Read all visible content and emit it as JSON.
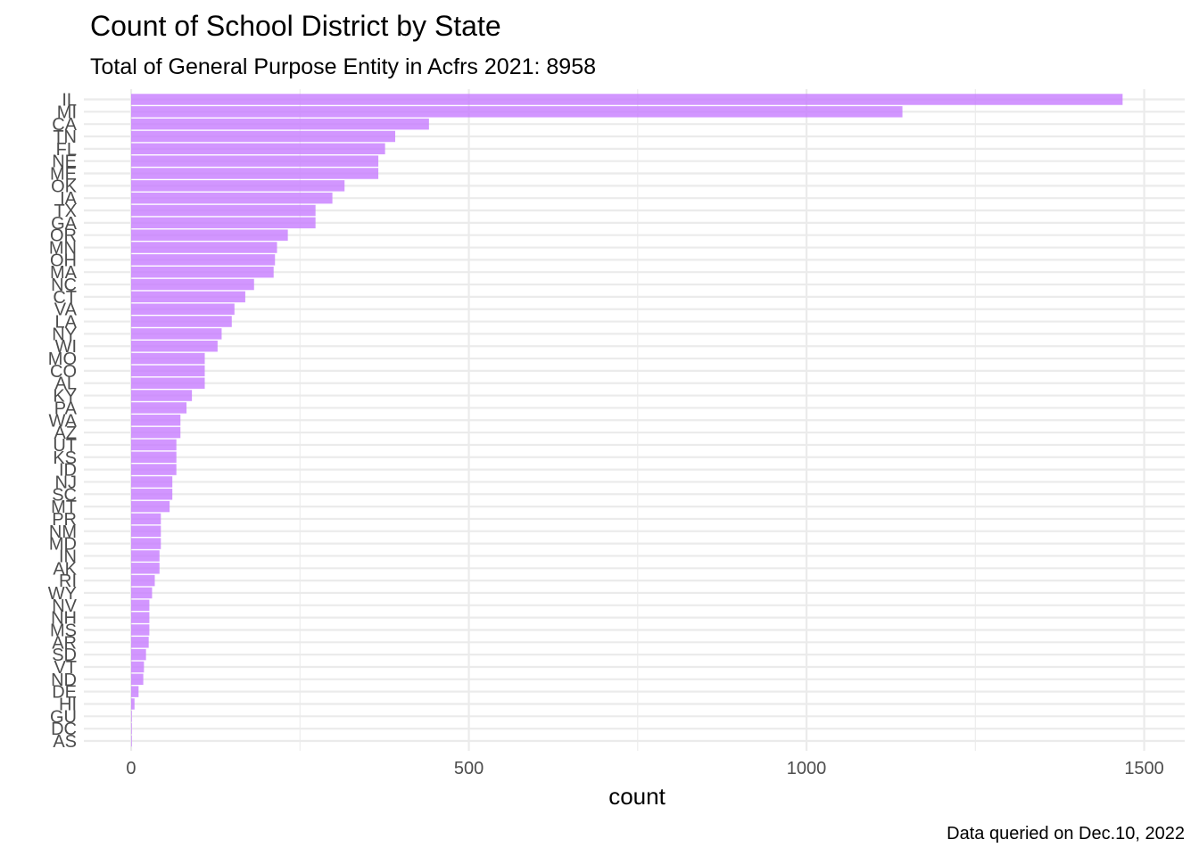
{
  "chart_data": {
    "type": "bar",
    "orientation": "horizontal",
    "title": "Count of School District by State",
    "subtitle": "Total of General Purpose Entity in Acfrs 2021: 8958",
    "caption": "Data queried on Dec.10, 2022",
    "xlabel": "count",
    "ylabel": "",
    "xlim": [
      -70,
      1560
    ],
    "xticks": [
      0,
      500,
      1000,
      1500
    ],
    "xminor": [
      250,
      750,
      1250
    ],
    "bar_color": "#c77cff",
    "bar_opacity": 0.8,
    "grid": true,
    "categories": [
      "IL",
      "MI",
      "CA",
      "TN",
      "FL",
      "NE",
      "ME",
      "OK",
      "IA",
      "TX",
      "GA",
      "OR",
      "MN",
      "OH",
      "MA",
      "NC",
      "CT",
      "VA",
      "LA",
      "NY",
      "WI",
      "MO",
      "CO",
      "AL",
      "KY",
      "PA",
      "WA",
      "AZ",
      "UT",
      "KS",
      "ID",
      "NJ",
      "SC",
      "MT",
      "PR",
      "NM",
      "MD",
      "IN",
      "AK",
      "RI",
      "WY",
      "NV",
      "NH",
      "MS",
      "AR",
      "SD",
      "VT",
      "ND",
      "DE",
      "HI",
      "GU",
      "DC",
      "AS"
    ],
    "values": [
      1468,
      1142,
      441,
      391,
      376,
      366,
      366,
      316,
      298,
      273,
      273,
      232,
      216,
      213,
      211,
      182,
      169,
      153,
      149,
      134,
      128,
      109,
      109,
      109,
      90,
      82,
      73,
      73,
      67,
      67,
      67,
      61,
      61,
      57,
      44,
      44,
      44,
      42,
      42,
      35,
      31,
      27,
      27,
      27,
      26,
      22,
      19,
      18,
      11,
      5,
      1,
      1,
      1
    ]
  }
}
